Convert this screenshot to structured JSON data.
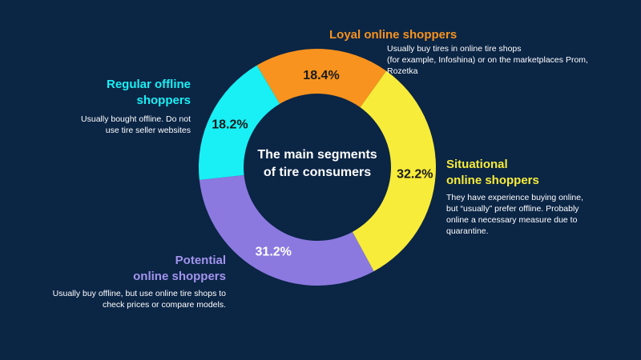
{
  "chart_data": {
    "type": "pie",
    "title": [
      "The main segments",
      "of tire consumers"
    ],
    "slices": [
      {
        "label": "Loyal online shoppers",
        "value": 18.4,
        "value_label": "18.4%",
        "color": "#f7931e"
      },
      {
        "label": "Situational online shoppers",
        "value": 32.2,
        "value_label": "32.2%",
        "color": "#f7ec3a"
      },
      {
        "label": "Potential online shoppers",
        "value": 31.2,
        "value_label": "31.2%",
        "color": "#8b79e0"
      },
      {
        "label": "Regular offline shoppers",
        "value": 18.2,
        "value_label": "18.2%",
        "color": "#18f0f5"
      }
    ]
  },
  "segments": {
    "loyal": {
      "title": [
        "Loyal online shoppers"
      ],
      "desc": [
        "Usually buy tires in online tire shops",
        "(for example, Infoshina) or on the marketplaces Prom,",
        "Rozetka"
      ]
    },
    "situational": {
      "title": [
        "Situational",
        "online shoppers"
      ],
      "desc": [
        "They have experience buying online,",
        "but “usually” prefer offline. Probably",
        "online a necessary measure due to",
        "quarantine."
      ]
    },
    "potential": {
      "title": [
        "Potential",
        "online shoppers"
      ],
      "desc": [
        "Usually buy offline, but use online tire shops to",
        "check prices or compare models."
      ]
    },
    "regular": {
      "title": [
        "Regular offline",
        "shoppers"
      ],
      "desc": [
        "Usually bought offline. Do not",
        "use tire seller websites"
      ]
    }
  }
}
